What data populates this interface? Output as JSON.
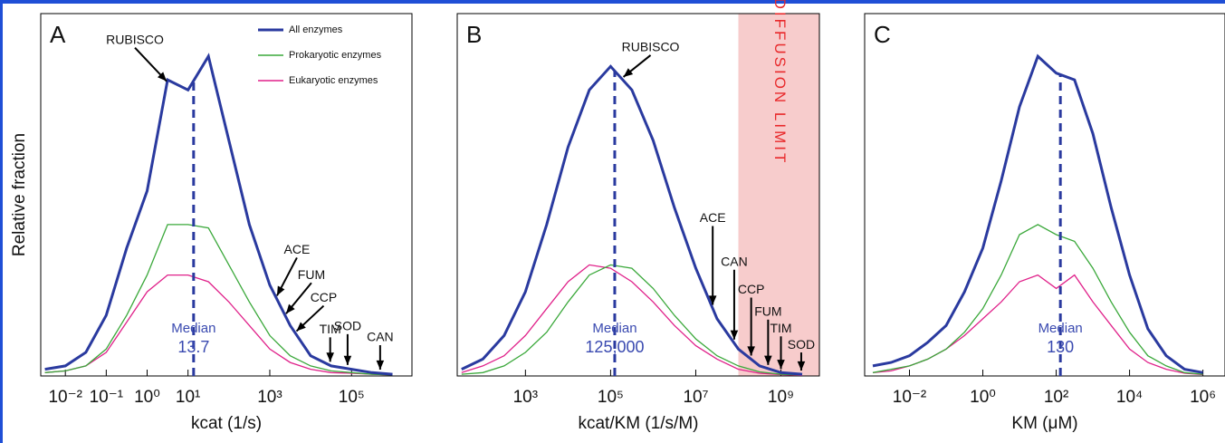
{
  "chart_data": [
    {
      "type": "line",
      "title": "A",
      "ylabel": "Relative fraction",
      "xlabel": "kcat (1/s)",
      "log_x": true,
      "legend": "top-right",
      "xlim": [
        0.0025,
        3000000
      ],
      "xticks": [
        {
          "value": 0.01,
          "label": "10⁻²"
        },
        {
          "value": 0.1,
          "label": "10⁻¹"
        },
        {
          "value": 1,
          "label": "10⁰"
        },
        {
          "value": 10,
          "label": "10¹"
        },
        {
          "value": 1000,
          "label": "10³"
        },
        {
          "value": 100000,
          "label": "10⁵"
        }
      ],
      "ylim": [
        0,
        1.05
      ],
      "x": [
        0.00316,
        0.01,
        0.0316,
        0.1,
        0.316,
        1,
        3.16,
        10,
        31.6,
        100,
        316,
        1000,
        3160,
        10000,
        31600,
        100000,
        316000,
        1000000
      ],
      "series": [
        {
          "name": "All enzymes",
          "color": "#2a3a9f",
          "values": [
            0.02,
            0.03,
            0.07,
            0.18,
            0.38,
            0.55,
            0.88,
            0.85,
            0.95,
            0.7,
            0.45,
            0.27,
            0.15,
            0.06,
            0.03,
            0.02,
            0.01,
            0.005
          ]
        },
        {
          "name": "Prokaryotic enzymes",
          "color": "#3aa83a",
          "values": [
            0.01,
            0.015,
            0.03,
            0.08,
            0.18,
            0.3,
            0.45,
            0.45,
            0.44,
            0.33,
            0.22,
            0.12,
            0.06,
            0.03,
            0.015,
            0.01,
            0.005,
            0.003
          ]
        },
        {
          "name": "Eukaryotic enzymes",
          "color": "#e0218a",
          "values": [
            0.01,
            0.015,
            0.03,
            0.07,
            0.16,
            0.25,
            0.3,
            0.3,
            0.28,
            0.22,
            0.15,
            0.08,
            0.04,
            0.02,
            0.01,
            0.008,
            0.005,
            0.003
          ]
        }
      ],
      "median": {
        "label": "Median",
        "value": 13.7
      },
      "annotations": [
        {
          "text": "RUBISCO",
          "x": 3
        },
        {
          "text": "ACE",
          "x": 1500
        },
        {
          "text": "FUM",
          "x": 2500
        },
        {
          "text": "CCP",
          "x": 4500
        },
        {
          "text": "TIM",
          "x": 30000
        },
        {
          "text": "SOD",
          "x": 80000
        },
        {
          "text": "CAN",
          "x": 500000
        }
      ]
    },
    {
      "type": "line",
      "title": "B",
      "xlabel": "kcat/KM (1/s/M)",
      "log_x": true,
      "xlim": [
        25,
        8000000000
      ],
      "xticks": [
        {
          "value": 1000,
          "label": "10³"
        },
        {
          "value": 100000,
          "label": "10⁵"
        },
        {
          "value": 10000000,
          "label": "10⁷"
        },
        {
          "value": 1000000000,
          "label": "10⁹"
        }
      ],
      "ylim": [
        0,
        1.05
      ],
      "x": [
        31.6,
        100,
        316,
        1000,
        3160,
        10000,
        31600,
        100000,
        316000,
        1000000,
        3160000,
        10000000,
        31600000,
        100000000,
        316000000,
        1000000000,
        3160000000
      ],
      "series": [
        {
          "name": "All enzymes",
          "color": "#2a3a9f",
          "values": [
            0.02,
            0.05,
            0.12,
            0.25,
            0.45,
            0.68,
            0.85,
            0.92,
            0.85,
            0.7,
            0.5,
            0.32,
            0.17,
            0.08,
            0.03,
            0.01,
            0.005
          ]
        },
        {
          "name": "Prokaryotic enzymes",
          "color": "#3aa83a",
          "values": [
            0.005,
            0.01,
            0.03,
            0.07,
            0.13,
            0.22,
            0.3,
            0.33,
            0.32,
            0.26,
            0.18,
            0.11,
            0.06,
            0.03,
            0.012,
            0.005,
            0.003
          ]
        },
        {
          "name": "Eukaryotic enzymes",
          "color": "#e0218a",
          "values": [
            0.01,
            0.03,
            0.06,
            0.12,
            0.2,
            0.28,
            0.33,
            0.32,
            0.28,
            0.22,
            0.15,
            0.09,
            0.05,
            0.02,
            0.008,
            0.004,
            0.002
          ]
        }
      ],
      "median": {
        "label": "Median",
        "value": 125000,
        "value_label": "125,000"
      },
      "shaded_region": {
        "text": "DIFFUSION LIMIT",
        "from": 100000000
      },
      "annotations": [
        {
          "text": "RUBISCO",
          "x": 200000
        },
        {
          "text": "ACE",
          "x": 25000000
        },
        {
          "text": "CAN",
          "x": 80000000
        },
        {
          "text": "CCP",
          "x": 200000000
        },
        {
          "text": "FUM",
          "x": 500000000
        },
        {
          "text": "TIM",
          "x": 1000000000
        },
        {
          "text": "SOD",
          "x": 3000000000
        }
      ]
    },
    {
      "type": "line",
      "title": "C",
      "xlabel": "KM (μM)",
      "log_x": true,
      "xlim": [
        0.0006,
        4000000
      ],
      "xticks": [
        {
          "value": 0.01,
          "label": "10⁻²"
        },
        {
          "value": 1,
          "label": "10⁰"
        },
        {
          "value": 100,
          "label": "10²"
        },
        {
          "value": 10000,
          "label": "10⁴"
        },
        {
          "value": 1000000,
          "label": "10⁶"
        }
      ],
      "ylim": [
        0,
        1.05
      ],
      "x": [
        0.001,
        0.00316,
        0.01,
        0.0316,
        0.1,
        0.316,
        1,
        3.16,
        10,
        31.6,
        100,
        316,
        1000,
        3160,
        10000,
        31600,
        100000,
        316000,
        1000000
      ],
      "series": [
        {
          "name": "All enzymes",
          "color": "#2a3a9f",
          "values": [
            0.03,
            0.04,
            0.06,
            0.1,
            0.15,
            0.25,
            0.38,
            0.58,
            0.8,
            0.95,
            0.9,
            0.88,
            0.72,
            0.5,
            0.3,
            0.14,
            0.06,
            0.02,
            0.01
          ]
        },
        {
          "name": "Prokaryotic enzymes",
          "color": "#3aa83a",
          "values": [
            0.01,
            0.02,
            0.03,
            0.05,
            0.08,
            0.13,
            0.2,
            0.3,
            0.42,
            0.45,
            0.42,
            0.4,
            0.32,
            0.22,
            0.13,
            0.06,
            0.03,
            0.01,
            0.005
          ]
        },
        {
          "name": "Eukaryotic enzymes",
          "color": "#e0218a",
          "values": [
            0.01,
            0.015,
            0.03,
            0.05,
            0.08,
            0.12,
            0.17,
            0.22,
            0.28,
            0.3,
            0.26,
            0.3,
            0.22,
            0.15,
            0.08,
            0.04,
            0.02,
            0.008,
            0.004
          ]
        }
      ],
      "median": {
        "label": "Median",
        "value": 130
      }
    }
  ]
}
